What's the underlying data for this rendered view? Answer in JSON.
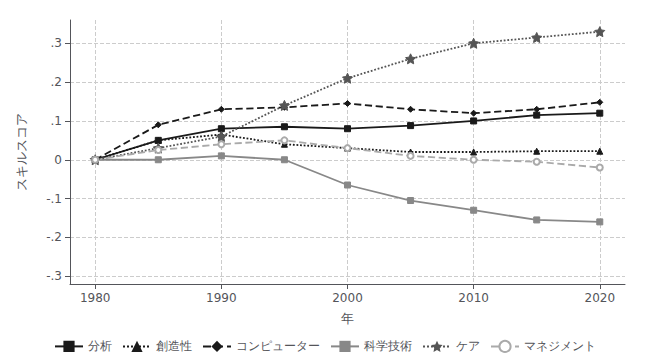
{
  "chart_data": {
    "type": "line",
    "xlabel": "年",
    "ylabel": "スキルスコア",
    "x": [
      1980,
      1985,
      1990,
      1995,
      2000,
      2005,
      2010,
      2015,
      2020
    ],
    "series": [
      {
        "name": "分析",
        "color": "#1a1a1a",
        "line_style": "solid",
        "marker": "square",
        "values": [
          0.0,
          0.05,
          0.08,
          0.085,
          0.08,
          0.088,
          0.1,
          0.115,
          0.12
        ]
      },
      {
        "name": "創造性",
        "color": "#1a1a1a",
        "line_style": "dotted",
        "marker": "triangle",
        "values": [
          0.0,
          0.05,
          0.065,
          0.04,
          0.03,
          0.02,
          0.02,
          0.022,
          0.022
        ]
      },
      {
        "name": "コンピューター",
        "color": "#1a1a1a",
        "line_style": "dashed",
        "marker": "diamond",
        "values": [
          0.0,
          0.09,
          0.13,
          0.135,
          0.145,
          0.13,
          0.12,
          0.13,
          0.148
        ]
      },
      {
        "name": "科学技術",
        "color": "#888888",
        "line_style": "solid",
        "marker": "square",
        "values": [
          0.0,
          0.0,
          0.01,
          0.0,
          -0.065,
          -0.105,
          -0.13,
          -0.155,
          -0.16
        ]
      },
      {
        "name": "ケア",
        "color": "#555555",
        "line_style": "dotted",
        "marker": "star",
        "values": [
          0.0,
          0.03,
          0.06,
          0.14,
          0.21,
          0.26,
          0.3,
          0.315,
          0.33
        ]
      },
      {
        "name": "マネジメント",
        "color": "#aaaaaa",
        "line_style": "dashed",
        "marker": "open_circle",
        "values": [
          0.0,
          0.025,
          0.04,
          0.05,
          0.03,
          0.01,
          0.0,
          -0.005,
          -0.02
        ]
      }
    ],
    "xlim": [
      1978,
      2022
    ],
    "xticks": [
      1980,
      1990,
      2000,
      2010,
      2020
    ],
    "ylim": [
      -0.32,
      0.36
    ],
    "yticks": [
      {
        "value": -0.3,
        "label": "-.3"
      },
      {
        "value": -0.2,
        "label": "-.2"
      },
      {
        "value": -0.1,
        "label": "-.1"
      },
      0,
      {
        "value": 0.1,
        "label": ".1"
      },
      {
        "value": 0.2,
        "label": ".2"
      },
      {
        "value": 0.3,
        "label": ".3"
      }
    ],
    "grid": true,
    "legend": "bottom"
  }
}
